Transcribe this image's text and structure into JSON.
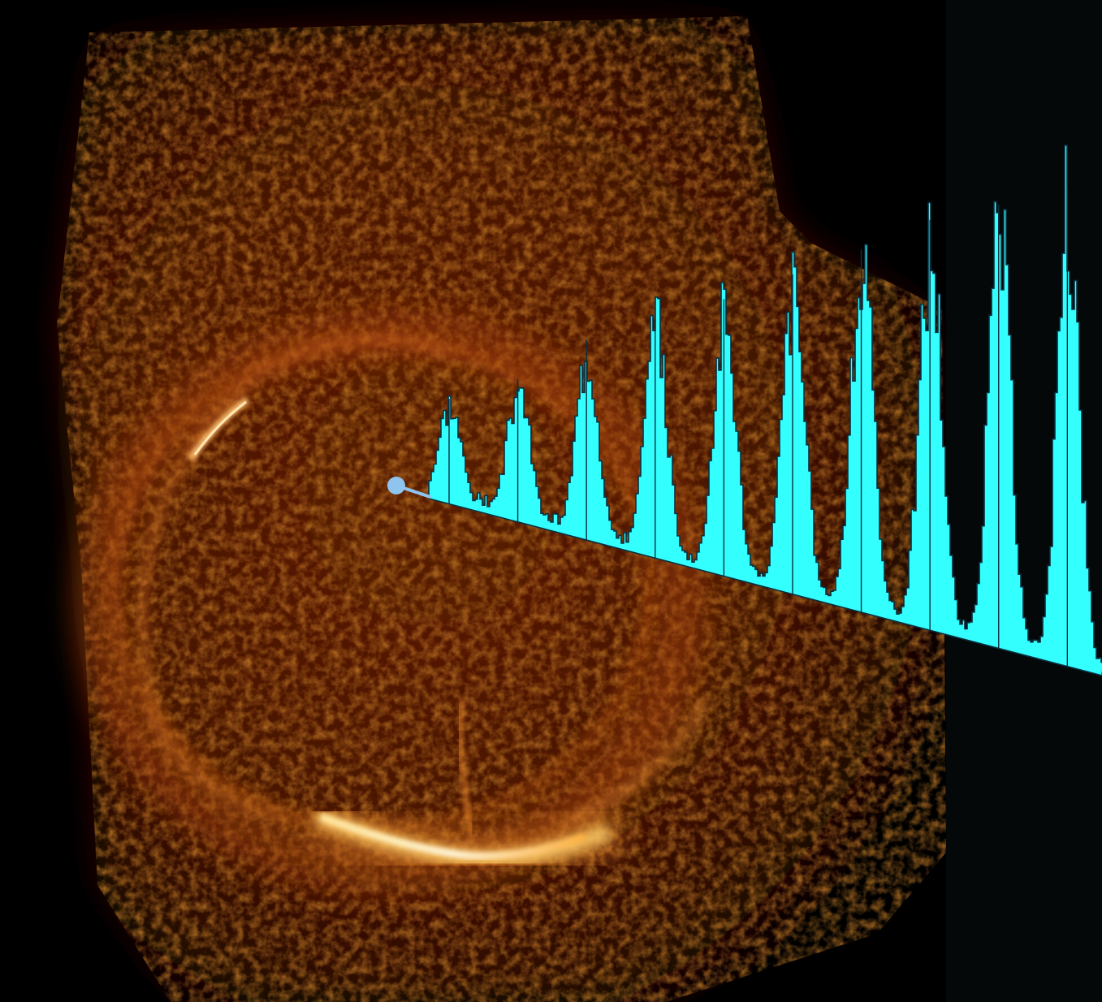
{
  "image": {
    "subject": "supernova-remnant-ring-with-spectrum-overlay",
    "colors": {
      "background": "#000000",
      "nebula_dark": "#3a1200",
      "nebula_mid": "#8a3000",
      "nebula_glow": "#d06010",
      "arc_bright": "#ffd060",
      "arc_core": "#fff6d0",
      "spectrum_fill": "#33ffff",
      "spectrum_edge": "#0a3040",
      "marker": "#8fc4ee",
      "side_panel": "#050808"
    }
  },
  "spectrum": {
    "peak_count": 10,
    "relative_peak_heights": [
      0.22,
      0.3,
      0.42,
      0.5,
      0.58,
      0.67,
      0.76,
      0.86,
      0.93,
      1.0
    ],
    "trend": "increasing"
  }
}
